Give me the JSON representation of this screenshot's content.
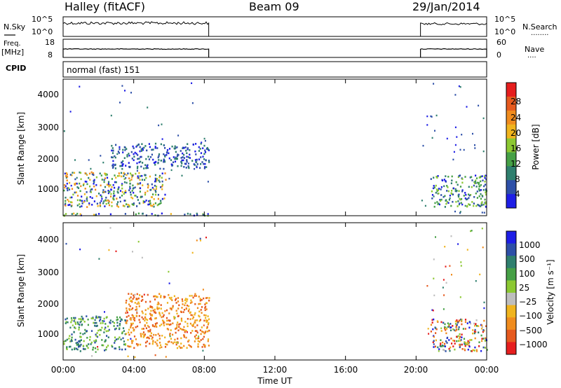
{
  "header": {
    "station": "Halley (fitACF)",
    "beam": "Beam 09",
    "date": "29/Jan/2014"
  },
  "nsky_panel": {
    "left_label": "N.Sky",
    "right_label": "N.Search",
    "right_dots": "........",
    "left_ticks": [
      "10^5",
      "10^0"
    ],
    "right_ticks": [
      "10^5",
      "10^0"
    ]
  },
  "freq_panel": {
    "left_label_1": "Freq.",
    "left_label_2": "[MHz]",
    "right_label": "Nave",
    "right_dots": "....",
    "left_ticks": [
      "18",
      "8"
    ],
    "right_ticks": [
      "60",
      "0"
    ]
  },
  "cpid_panel": {
    "label": "CPID",
    "mode": "normal (fast) 151"
  },
  "colors": {
    "power": [
      "#1e1ee6",
      "#2e50a8",
      "#2f7f6e",
      "#46a046",
      "#8cc832",
      "#f0b41e",
      "#f08c1e",
      "#e65a1e",
      "#e61e1e"
    ],
    "velocity": [
      "#e61e1e",
      "#e65a1e",
      "#f08c1e",
      "#f0b41e",
      "#bebebe",
      "#8cc832",
      "#46a046",
      "#2f7f6e",
      "#2e50a8",
      "#1e1ee6"
    ]
  },
  "chart_data": [
    {
      "type": "heatmap",
      "name": "power",
      "ylabel": "Slant Range [km]",
      "colorbar_label": "Power [dB]",
      "colorbar_ticks": [
        "28",
        "24",
        "20",
        "16",
        "12",
        "8",
        "4"
      ],
      "y_ticks": [
        "4000",
        "3000",
        "2000",
        "1000"
      ],
      "ylim": [
        200,
        4500
      ],
      "xlim_hours": [
        0,
        24
      ],
      "data_windows_ut": [
        [
          "00:00",
          "08:15"
        ],
        [
          "20:15",
          "24:00"
        ]
      ],
      "echo_regions": [
        {
          "t0": 0.0,
          "t1": 5.8,
          "r0": 500,
          "r1": 1600,
          "level": "high"
        },
        {
          "t0": 2.7,
          "t1": 8.3,
          "r0": 1700,
          "r1": 2500,
          "level": "low"
        },
        {
          "t0": 0.0,
          "t1": 8.3,
          "r0": 220,
          "r1": 300,
          "level": "mixed"
        },
        {
          "t0": 20.8,
          "t1": 24.0,
          "r0": 500,
          "r1": 1500,
          "level": "mid"
        }
      ]
    },
    {
      "type": "heatmap",
      "name": "velocity",
      "ylabel": "Slant Range [km]",
      "xlabel": "Time UT",
      "colorbar_label": "Velocity [m s⁻¹]",
      "colorbar_ticks": [
        "1000",
        "500",
        "100",
        "25",
        "−25",
        "−100",
        "−500",
        "−1000"
      ],
      "y_ticks": [
        "4000",
        "3000",
        "2000",
        "1000"
      ],
      "x_ticks": [
        "00:00",
        "04:00",
        "08:00",
        "12:00",
        "16:00",
        "20:00",
        "00:00"
      ],
      "ylim": [
        200,
        4500
      ],
      "xlim_hours": [
        0,
        24
      ],
      "echo_regions": [
        {
          "t0": 0.0,
          "t1": 3.5,
          "r0": 500,
          "r1": 1600,
          "sign": "toward"
        },
        {
          "t0": 3.5,
          "t1": 8.3,
          "r0": 600,
          "r1": 2300,
          "sign": "away"
        },
        {
          "t0": 20.8,
          "t1": 24.0,
          "r0": 500,
          "r1": 1500,
          "sign": "mixed"
        }
      ]
    }
  ]
}
